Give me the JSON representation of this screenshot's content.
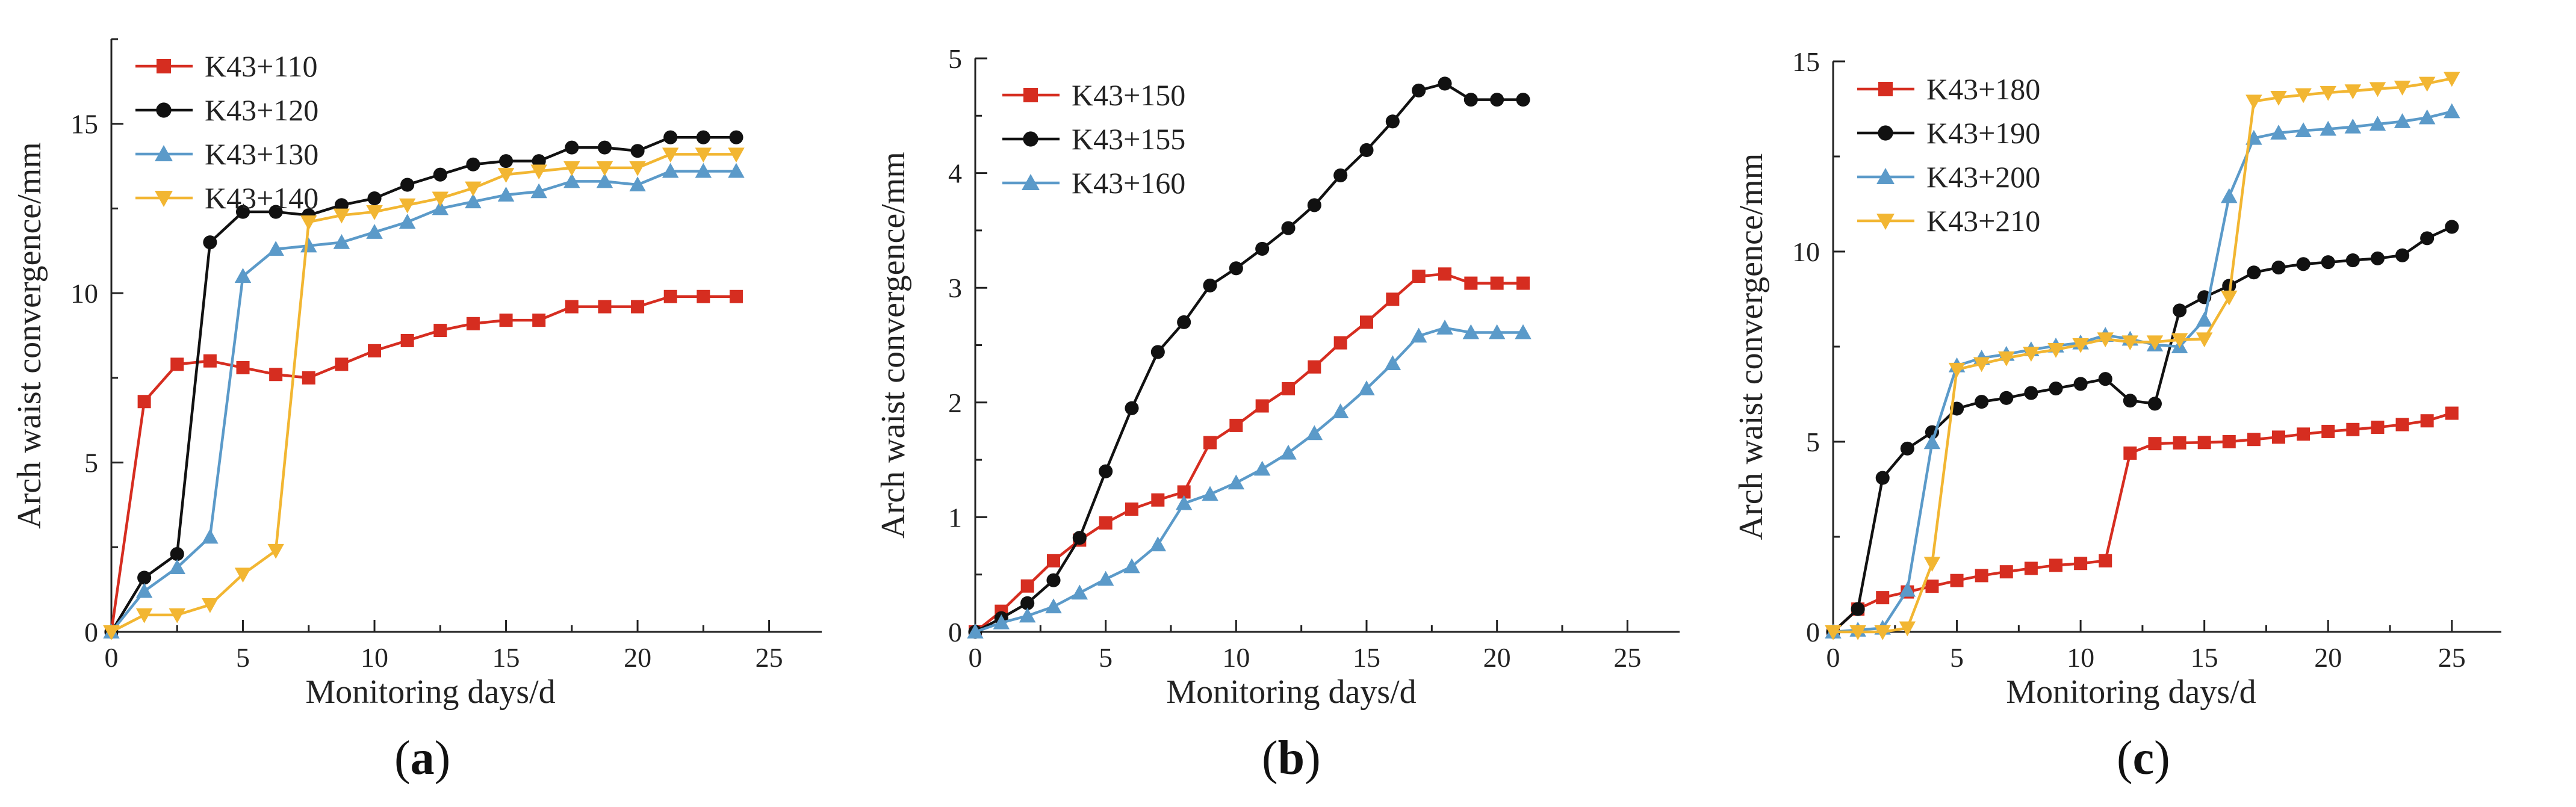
{
  "figure": {
    "panel_labels": [
      {
        "open": "(",
        "letter": "a",
        "close": ")"
      },
      {
        "open": "(",
        "letter": "b",
        "close": ")"
      },
      {
        "open": "(",
        "letter": "c",
        "close": ")"
      }
    ]
  },
  "colors": {
    "red": "#d62d20",
    "black": "#111111",
    "blue": "#5b9ac9",
    "yellow": "#f2b632",
    "axis": "#222222"
  },
  "chart_data": [
    {
      "type": "line",
      "panel": "a",
      "xlabel": "Monitoring days/d",
      "ylabel": "Arch waist convergence/mm",
      "xlim": [
        0,
        27
      ],
      "ylim": [
        0,
        17.5
      ],
      "xticks": [
        0,
        5,
        10,
        15,
        20,
        25
      ],
      "yticks": [
        0,
        5,
        10,
        15
      ],
      "legend": "top-left",
      "series": [
        {
          "name": "K43+110",
          "marker": "square",
          "color": "#d62d20",
          "x": [
            0,
            1.25,
            2.5,
            3.75,
            5,
            6.25,
            7.5,
            8.75,
            10,
            11.25,
            12.5,
            13.75,
            15,
            16.25,
            17.5,
            18.75,
            20,
            21.25,
            22.5,
            23.75
          ],
          "y": [
            0,
            6.8,
            7.9,
            8.0,
            7.8,
            7.6,
            7.5,
            7.9,
            8.3,
            8.6,
            8.9,
            9.1,
            9.2,
            9.2,
            9.6,
            9.6,
            9.6,
            9.9,
            9.9,
            9.9
          ]
        },
        {
          "name": "K43+120",
          "marker": "circle",
          "color": "#111111",
          "x": [
            0,
            1.25,
            2.5,
            3.75,
            5,
            6.25,
            7.5,
            8.75,
            10,
            11.25,
            12.5,
            13.75,
            15,
            16.25,
            17.5,
            18.75,
            20,
            21.25,
            22.5,
            23.75
          ],
          "y": [
            0,
            1.6,
            2.3,
            11.5,
            12.4,
            12.4,
            12.3,
            12.6,
            12.8,
            13.2,
            13.5,
            13.8,
            13.9,
            13.9,
            14.3,
            14.3,
            14.2,
            14.6,
            14.6,
            14.6
          ]
        },
        {
          "name": "K43+130",
          "marker": "triangle-up",
          "color": "#5b9ac9",
          "x": [
            0,
            1.25,
            2.5,
            3.75,
            5,
            6.25,
            7.5,
            8.75,
            10,
            11.25,
            12.5,
            13.75,
            15,
            16.25,
            17.5,
            18.75,
            20,
            21.25,
            22.5,
            23.75
          ],
          "y": [
            0,
            1.2,
            1.9,
            2.8,
            10.5,
            11.3,
            11.4,
            11.5,
            11.8,
            12.1,
            12.5,
            12.7,
            12.9,
            13.0,
            13.3,
            13.3,
            13.2,
            13.6,
            13.6,
            13.6
          ]
        },
        {
          "name": "K43+140",
          "marker": "triangle-down",
          "color": "#f2b632",
          "x": [
            0,
            1.25,
            2.5,
            3.75,
            5,
            6.25,
            7.5,
            8.75,
            10,
            11.25,
            12.5,
            13.75,
            15,
            16.25,
            17.5,
            18.75,
            20,
            21.25,
            22.5,
            23.75
          ],
          "y": [
            0,
            0.5,
            0.5,
            0.8,
            1.7,
            2.4,
            12.1,
            12.3,
            12.4,
            12.6,
            12.8,
            13.1,
            13.5,
            13.6,
            13.7,
            13.7,
            13.7,
            14.1,
            14.1,
            14.1
          ]
        }
      ]
    },
    {
      "type": "line",
      "panel": "b",
      "xlabel": "Monitoring days/d",
      "ylabel": "Arch waist convergence/mm",
      "xlim": [
        0,
        27
      ],
      "ylim": [
        0,
        5
      ],
      "xticks": [
        0,
        5,
        10,
        15,
        20,
        25
      ],
      "yticks": [
        0,
        1,
        2,
        3,
        4,
        5
      ],
      "legend": "top-left",
      "series": [
        {
          "name": "K43+150",
          "marker": "square",
          "color": "#d62d20",
          "x": [
            0,
            1,
            2,
            3,
            4,
            5,
            6,
            7,
            8,
            9,
            10,
            11,
            12,
            13,
            14,
            15,
            16,
            17,
            18,
            19,
            20,
            21
          ],
          "y": [
            0,
            0.18,
            0.4,
            0.62,
            0.8,
            0.95,
            1.07,
            1.15,
            1.22,
            1.65,
            1.8,
            1.97,
            2.12,
            2.31,
            2.52,
            2.7,
            2.9,
            3.1,
            3.12,
            3.04,
            3.04,
            3.04
          ]
        },
        {
          "name": "K43+155",
          "marker": "circle",
          "color": "#111111",
          "x": [
            0,
            1,
            2,
            3,
            4,
            5,
            6,
            7,
            8,
            9,
            10,
            11,
            12,
            13,
            14,
            15,
            16,
            17,
            18,
            19,
            20,
            21
          ],
          "y": [
            0,
            0.12,
            0.25,
            0.45,
            0.82,
            1.4,
            1.95,
            2.44,
            2.7,
            3.02,
            3.17,
            3.34,
            3.52,
            3.72,
            3.98,
            4.2,
            4.45,
            4.72,
            4.78,
            4.64,
            4.64,
            4.64
          ]
        },
        {
          "name": "K43+160",
          "marker": "triangle-up",
          "color": "#5b9ac9",
          "x": [
            0,
            1,
            2,
            3,
            4,
            5,
            6,
            7,
            8,
            9,
            10,
            11,
            12,
            13,
            14,
            15,
            16,
            17,
            18,
            19,
            20,
            21
          ],
          "y": [
            0,
            0.08,
            0.14,
            0.22,
            0.34,
            0.46,
            0.57,
            0.76,
            1.12,
            1.2,
            1.3,
            1.42,
            1.56,
            1.73,
            1.92,
            2.12,
            2.34,
            2.58,
            2.65,
            2.61,
            2.61,
            2.61
          ]
        }
      ]
    },
    {
      "type": "line",
      "panel": "c",
      "xlabel": "Monitoring days/d",
      "ylabel": "Arch waist convergence/mm",
      "xlim": [
        0,
        27
      ],
      "ylim": [
        0,
        15
      ],
      "xticks": [
        0,
        5,
        10,
        15,
        20,
        25
      ],
      "yticks": [
        0,
        5,
        10,
        15
      ],
      "legend": "top-left",
      "series": [
        {
          "name": "K43+180",
          "marker": "square",
          "color": "#d62d20",
          "x": [
            0,
            1,
            2,
            3,
            4,
            5,
            6,
            7,
            8,
            9,
            10,
            11,
            12,
            13,
            14,
            15,
            16,
            17,
            18,
            19,
            20,
            21,
            22,
            23,
            24,
            25
          ],
          "y": [
            0,
            0.6,
            0.9,
            1.05,
            1.2,
            1.35,
            1.48,
            1.58,
            1.67,
            1.75,
            1.8,
            1.87,
            4.7,
            4.95,
            4.97,
            4.98,
            5.0,
            5.06,
            5.12,
            5.2,
            5.27,
            5.32,
            5.38,
            5.45,
            5.55,
            5.75
          ]
        },
        {
          "name": "K43+190",
          "marker": "circle",
          "color": "#111111",
          "x": [
            0,
            1,
            2,
            3,
            4,
            5,
            6,
            7,
            8,
            9,
            10,
            11,
            12,
            13,
            14,
            15,
            16,
            17,
            18,
            19,
            20,
            21,
            22,
            23,
            24,
            25
          ],
          "y": [
            0,
            0.6,
            4.05,
            4.82,
            5.25,
            5.87,
            6.05,
            6.15,
            6.28,
            6.4,
            6.52,
            6.65,
            6.08,
            6.0,
            8.45,
            8.8,
            9.1,
            9.45,
            9.58,
            9.67,
            9.72,
            9.77,
            9.82,
            9.9,
            10.35,
            10.65
          ]
        },
        {
          "name": "K43+200",
          "marker": "triangle-up",
          "color": "#5b9ac9",
          "x": [
            0,
            1,
            2,
            3,
            4,
            5,
            6,
            7,
            8,
            9,
            10,
            11,
            12,
            13,
            14,
            15,
            16,
            17,
            18,
            19,
            20,
            21,
            22,
            23,
            24,
            25
          ],
          "y": [
            0,
            0.05,
            0.1,
            1.1,
            4.98,
            7.0,
            7.2,
            7.3,
            7.42,
            7.52,
            7.6,
            7.8,
            7.7,
            7.55,
            7.5,
            8.2,
            11.45,
            12.98,
            13.12,
            13.18,
            13.22,
            13.28,
            13.35,
            13.42,
            13.52,
            13.68
          ]
        },
        {
          "name": "K43+210",
          "marker": "triangle-down",
          "color": "#f2b632",
          "x": [
            0,
            1,
            2,
            3,
            4,
            5,
            6,
            7,
            8,
            9,
            10,
            11,
            12,
            13,
            14,
            15,
            16,
            17,
            18,
            19,
            20,
            21,
            22,
            23,
            24,
            25
          ],
          "y": [
            0,
            0.0,
            0.0,
            0.1,
            1.8,
            6.9,
            7.05,
            7.2,
            7.32,
            7.42,
            7.55,
            7.7,
            7.62,
            7.62,
            7.68,
            7.7,
            8.8,
            13.95,
            14.05,
            14.12,
            14.18,
            14.22,
            14.28,
            14.32,
            14.42,
            14.55
          ]
        }
      ]
    }
  ]
}
